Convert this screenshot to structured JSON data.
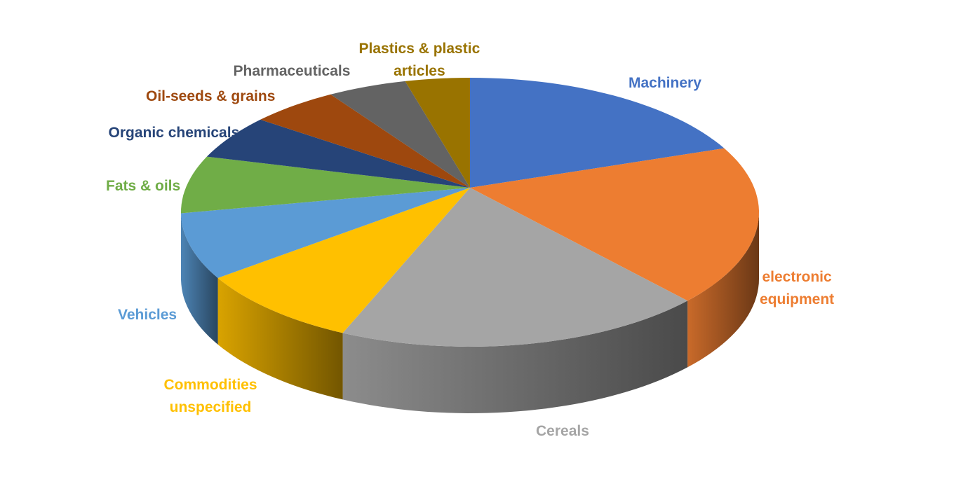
{
  "chart_data": {
    "type": "pie",
    "style": "3d",
    "title": "",
    "legend": "none",
    "labels_outside": true,
    "slices": [
      {
        "label": "Machinery",
        "value": 17.1,
        "color": "#4472C4"
      },
      {
        "label": "electronic equipment",
        "lines": [
          "electronic",
          "equipment"
        ],
        "value": 19.3,
        "color": "#ED7D31"
      },
      {
        "label": "Cereals",
        "value": 20.8,
        "color": "#A5A5A5"
      },
      {
        "label": "Commodities unspecified",
        "lines": [
          "Commodities",
          "unspecified"
        ],
        "value": 9.6,
        "color": "#FFC000"
      },
      {
        "label": "Vehicles",
        "value": 8.0,
        "color": "#5B9BD5"
      },
      {
        "label": "Fats & oils",
        "value": 6.9,
        "color": "#70AD47"
      },
      {
        "label": "Organic chemicals",
        "value": 5.3,
        "color": "#264478"
      },
      {
        "label": "Oil-seeds & grains",
        "value": 4.9,
        "color": "#9E480E"
      },
      {
        "label": "Pharmaceuticals",
        "value": 4.4,
        "color": "#636363"
      },
      {
        "label": "Plastics & plastic articles",
        "lines": [
          "Plastics & plastic",
          "articles"
        ],
        "value": 3.6,
        "color": "#997300"
      }
    ]
  }
}
